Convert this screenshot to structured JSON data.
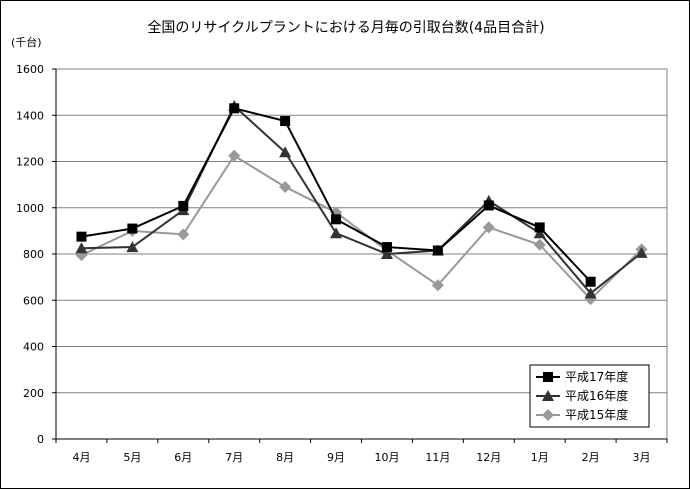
{
  "chart_data": {
    "type": "line",
    "title": "全国のリサイクルプラントにおける月毎の引取台数(4品目合計)",
    "unit_label": "(千台)",
    "xlabel": "",
    "ylabel": "",
    "categories": [
      "4月",
      "5月",
      "6月",
      "7月",
      "8月",
      "9月",
      "10月",
      "11月",
      "12月",
      "1月",
      "2月",
      "3月"
    ],
    "y_ticks": [
      "0",
      "200",
      "400",
      "600",
      "800",
      "1000",
      "1200",
      "1400",
      "1600"
    ],
    "ylim": [
      0,
      1600
    ],
    "grid": true,
    "legend_position": "bottom-right",
    "series": [
      {
        "name": "平成17年度",
        "marker": "square",
        "color": "#000000",
        "values": [
          875,
          910,
          1008,
          1430,
          1375,
          950,
          830,
          815,
          1010,
          915,
          680,
          null
        ]
      },
      {
        "name": "平成16年度",
        "marker": "triangle",
        "color": "#333333",
        "values": [
          825,
          830,
          990,
          1440,
          1240,
          890,
          800,
          815,
          1030,
          890,
          630,
          805
        ]
      },
      {
        "name": "平成15年度",
        "marker": "diamond",
        "color": "#999999",
        "values": [
          795,
          900,
          885,
          1225,
          1090,
          980,
          815,
          665,
          915,
          840,
          605,
          820
        ]
      }
    ]
  }
}
